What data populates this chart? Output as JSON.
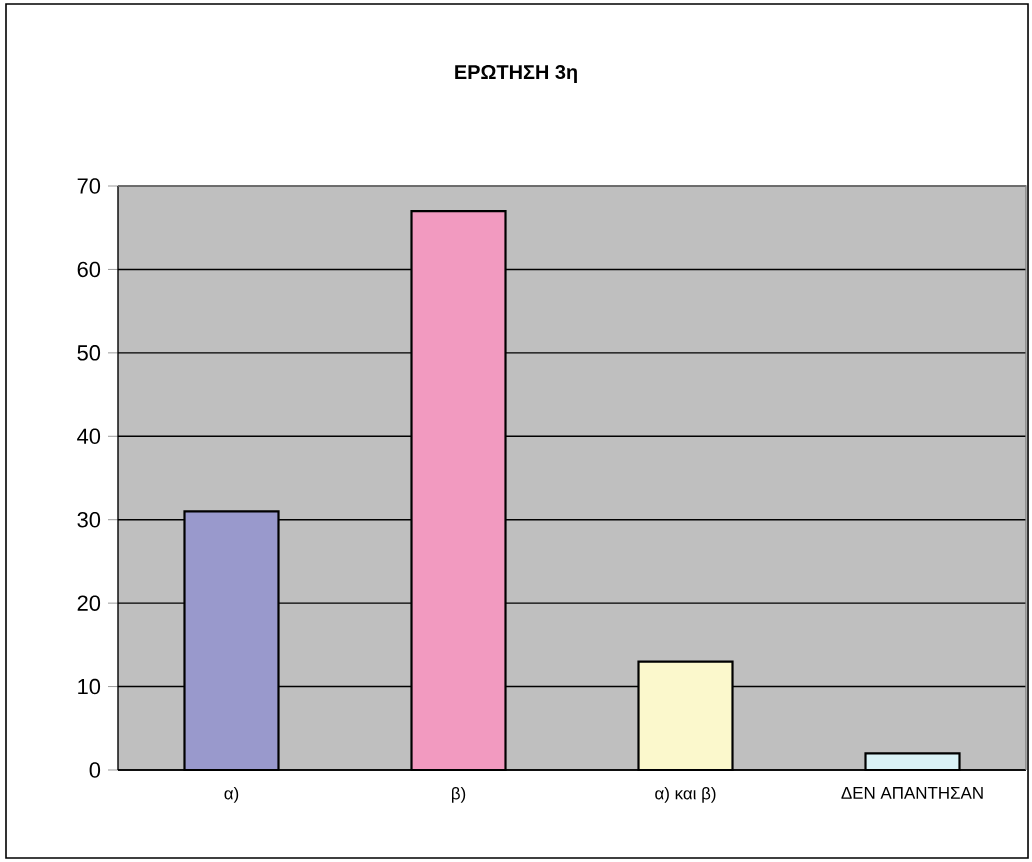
{
  "chart_data": {
    "type": "bar",
    "title": "ΕΡΩΤΗΣΗ 3η",
    "categories": [
      "α)",
      "β)",
      "α) και β)",
      "ΔΕΝ ΑΠΑΝΤΗΣΑΝ"
    ],
    "values": [
      31,
      67,
      13,
      2
    ],
    "colors": [
      "#9999cc",
      "#f29ac0",
      "#fbf8cc",
      "#daf2f6"
    ],
    "ylim": [
      0,
      70
    ],
    "yticks": [
      0,
      10,
      20,
      30,
      40,
      50,
      60,
      70
    ],
    "grid": "y"
  }
}
